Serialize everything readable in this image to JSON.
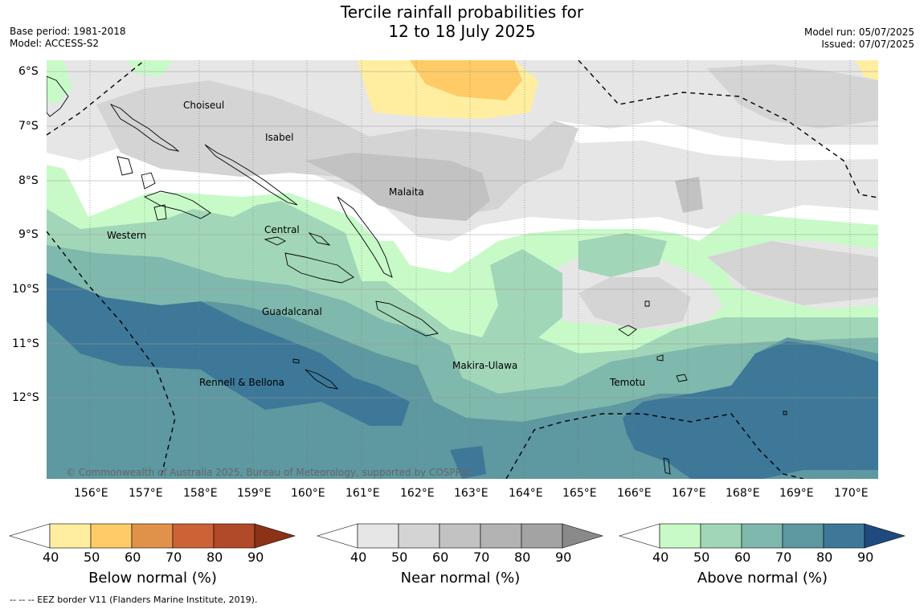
{
  "title_line1": "Tercile rainfall probabilities for",
  "title_line2": "12 to 18 July 2025",
  "base_period": "Base period: 1981-2018",
  "model": "Model: ACCESS-S2",
  "model_run": "Model run: 05/07/2025",
  "issued": "Issued: 07/07/2025",
  "lat_labels": [
    "6°S",
    "7°S",
    "8°S",
    "9°S",
    "10°S",
    "11°S",
    "12°S"
  ],
  "lon_labels": [
    "156°E",
    "157°E",
    "158°E",
    "159°E",
    "160°E",
    "161°E",
    "162°E",
    "163°E",
    "164°E",
    "165°E",
    "166°E",
    "167°E",
    "168°E",
    "169°E",
    "170°E"
  ],
  "provinces": [
    "Choiseul",
    "Isabel",
    "Malaita",
    "Western",
    "Central",
    "Guadalcanal",
    "Makira-Ulawa",
    "Rennell & Bellona",
    "Temotu"
  ],
  "copyright": "© Commonwealth of Australia 2025, Bureau of Meteorology, supported by COSPPac",
  "colorbars": [
    {
      "title": "Below normal (%)",
      "ticks": [
        "40",
        "50",
        "60",
        "70",
        "80",
        "90"
      ],
      "colors": [
        "#ffeea0",
        "#fecb66",
        "#e0924a",
        "#cc6236",
        "#b04a28",
        "#8b3217"
      ]
    },
    {
      "title": "Near normal (%)",
      "ticks": [
        "40",
        "50",
        "60",
        "70",
        "80",
        "90"
      ],
      "colors": [
        "#e6e6e6",
        "#d4d4d4",
        "#c2c2c2",
        "#b3b3b3",
        "#a3a3a3",
        "#8a8a8a"
      ]
    },
    {
      "title": "Above normal (%)",
      "ticks": [
        "40",
        "50",
        "60",
        "70",
        "80",
        "90"
      ],
      "colors": [
        "#c8fac8",
        "#a2d6b8",
        "#7fb8ac",
        "#5e98a0",
        "#3d7898",
        "#1f4a80"
      ]
    }
  ],
  "footer": "--  --  -- EEZ border V11 (Flanders Marine Institute, 2019)."
}
